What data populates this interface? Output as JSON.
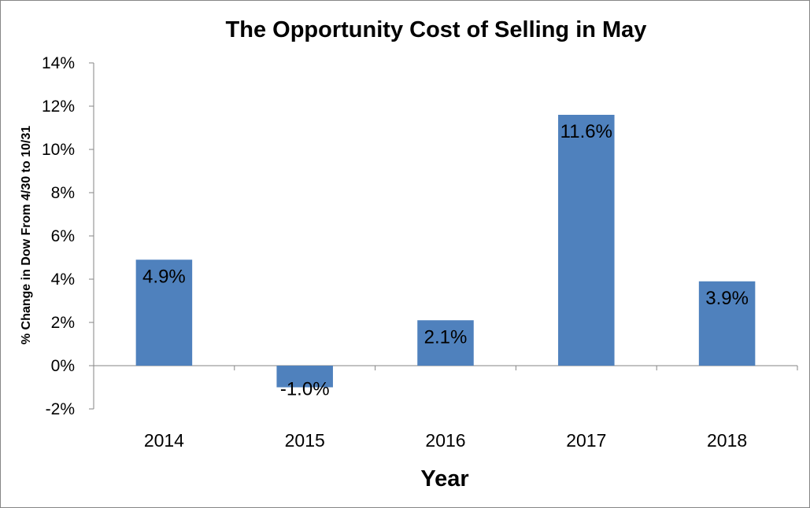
{
  "chart_data": {
    "type": "bar",
    "title": "The Opportunity Cost of Selling in May",
    "xlabel": "Year",
    "ylabel": "% Change in Dow From 4/30 to 10/31",
    "categories": [
      "2014",
      "2015",
      "2016",
      "2017",
      "2018"
    ],
    "values": [
      4.9,
      -1.0,
      2.1,
      11.6,
      3.9
    ],
    "data_labels": [
      "4.9%",
      "-1.0%",
      "2.1%",
      "11.6%",
      "3.9%"
    ],
    "ylim": [
      -2,
      14
    ],
    "yticks": [
      -2,
      0,
      2,
      4,
      6,
      8,
      10,
      12,
      14
    ],
    "ytick_labels": [
      "-2%",
      "0%",
      "2%",
      "4%",
      "6%",
      "8%",
      "10%",
      "12%",
      "14%"
    ],
    "grid": false,
    "legend": "none",
    "bar_color": "#4f81bd",
    "axis_color": "#868686"
  }
}
